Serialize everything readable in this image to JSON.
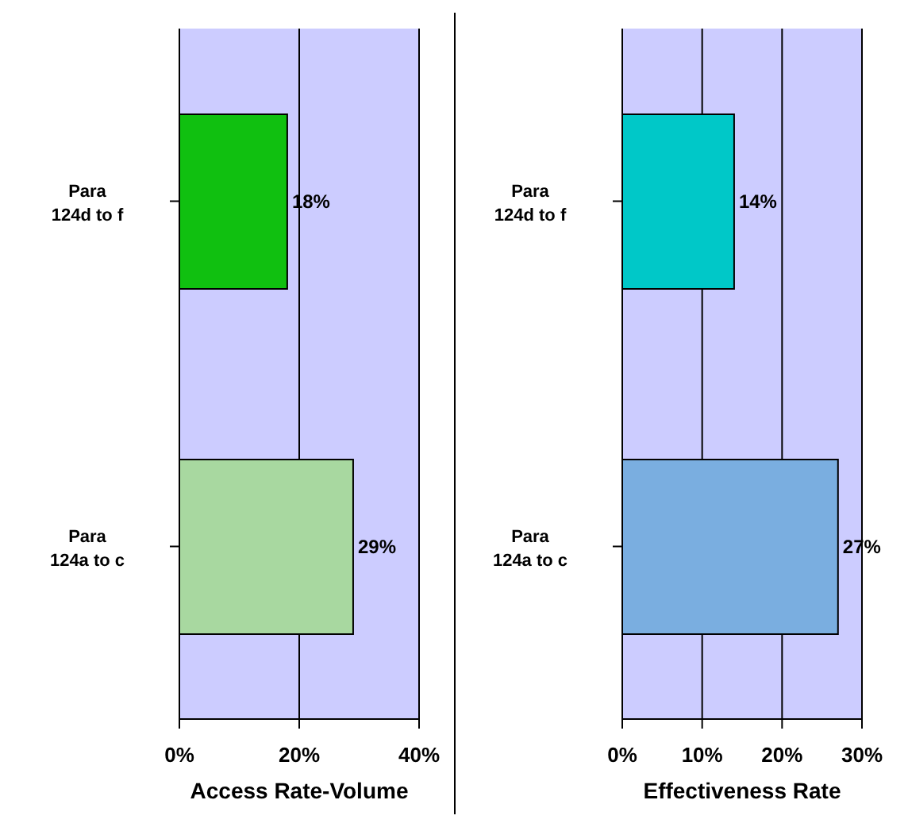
{
  "chart_data": [
    {
      "type": "bar",
      "orientation": "horizontal",
      "xlabel": "Access Rate-Volume",
      "categories": [
        "Para 124d to f",
        "Para 124a to c"
      ],
      "values": [
        18,
        29
      ],
      "colors": [
        "#10c010",
        "#a8d8a0"
      ],
      "value_labels": [
        "18%",
        "29%"
      ],
      "xlim": [
        0,
        40
      ],
      "xticks": [
        {
          "value": 0,
          "label": "0%"
        },
        {
          "value": 20,
          "label": "20%"
        },
        {
          "value": 40,
          "label": "40%"
        }
      ],
      "grid": "x",
      "legend": false
    },
    {
      "type": "bar",
      "orientation": "horizontal",
      "xlabel": "Effectiveness Rate",
      "categories": [
        "Para 124d to f",
        "Para 124a to c"
      ],
      "values": [
        14,
        27
      ],
      "colors": [
        "#00c8c8",
        "#7aaee0"
      ],
      "value_labels": [
        "14%",
        "27%"
      ],
      "xlim": [
        0,
        30
      ],
      "xticks": [
        {
          "value": 0,
          "label": "0%"
        },
        {
          "value": 10,
          "label": "10%"
        },
        {
          "value": 20,
          "label": "20%"
        },
        {
          "value": 30,
          "label": "30%"
        }
      ],
      "grid": "x",
      "legend": false
    }
  ]
}
